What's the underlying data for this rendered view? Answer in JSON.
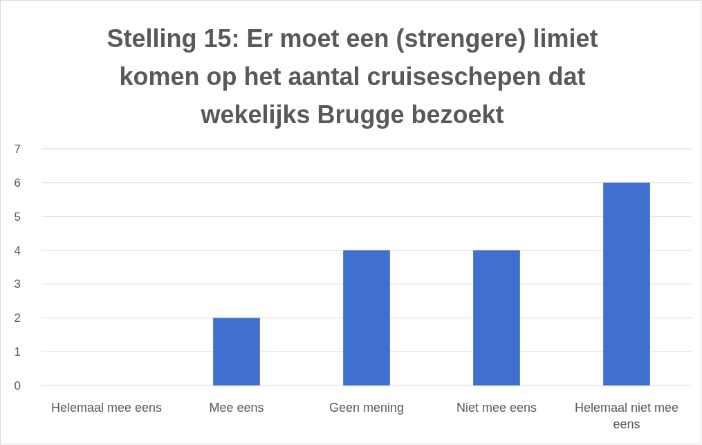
{
  "chart_data": {
    "type": "bar",
    "title": "Stelling 15: Er moet een (strengere) limiet komen op het aantal cruiseschepen dat wekelijks Brugge bezoekt",
    "categories": [
      "Helemaal mee eens",
      "Mee eens",
      "Geen mening",
      "Niet mee eens",
      "Helemaal niet mee eens"
    ],
    "values": [
      0,
      2,
      4,
      4,
      6
    ],
    "color": "#3f6fcf",
    "ylim": [
      0,
      7
    ],
    "yticks": [
      0,
      1,
      2,
      3,
      4,
      5,
      6,
      7
    ],
    "grid": "y"
  }
}
